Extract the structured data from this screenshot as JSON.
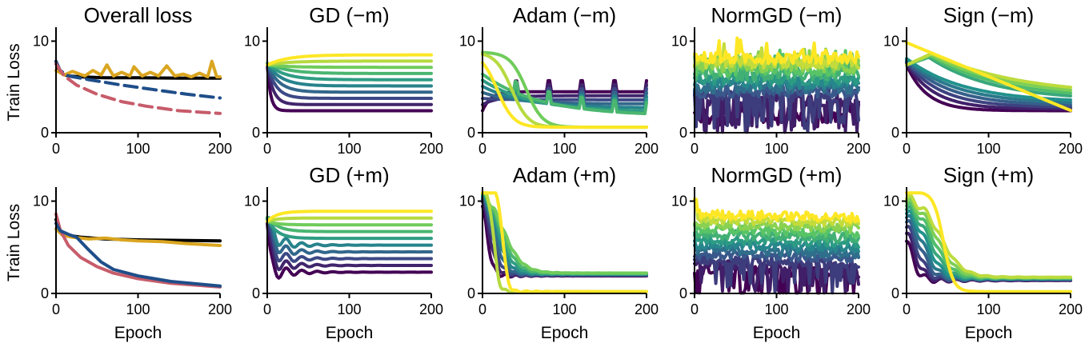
{
  "chart_data": {
    "type": "line",
    "layout": "2x5 grid",
    "x_domain": [
      0,
      200
    ],
    "y_domain": [
      0,
      11
    ],
    "xticks": [
      0,
      100,
      200
    ],
    "yticks": [
      0,
      10
    ],
    "xtick_labels": [
      "0",
      "100",
      "200"
    ],
    "ytick_labels": [
      "0",
      "10"
    ],
    "xlabel": "Epoch",
    "ylabel": "Train Loss",
    "overall_colors": {
      "black": "#000000",
      "gold": "#DAA520",
      "blue": "#1F4E89",
      "pink": "#C75C6A"
    },
    "colormap_stops": [
      "#440154",
      "#3b528b",
      "#21918c",
      "#5ec962",
      "#fde725"
    ],
    "panels": [
      {
        "title": "Overall loss",
        "kind": "overall",
        "series": [
          {
            "name": "black",
            "color": "#000000",
            "dash": false,
            "points": [
              [
                0,
                7.8
              ],
              [
                3,
                6.9
              ],
              [
                8,
                6.4
              ],
              [
                15,
                6.2
              ],
              [
                30,
                6.1
              ],
              [
                60,
                6.0
              ],
              [
                100,
                6.0
              ],
              [
                150,
                5.95
              ],
              [
                200,
                5.95
              ]
            ]
          },
          {
            "name": "gold",
            "color": "#DAA520",
            "dash": false,
            "points": [
              [
                0,
                6.8
              ],
              [
                10,
                6.3
              ],
              [
                20,
                6.7
              ],
              [
                35,
                6.2
              ],
              [
                45,
                6.8
              ],
              [
                55,
                6.3
              ],
              [
                62,
                7.4
              ],
              [
                70,
                6.2
              ],
              [
                80,
                6.6
              ],
              [
                90,
                6.2
              ],
              [
                95,
                7.2
              ],
              [
                105,
                6.2
              ],
              [
                115,
                6.6
              ],
              [
                125,
                6.2
              ],
              [
                135,
                7.3
              ],
              [
                145,
                6.2
              ],
              [
                155,
                6.4
              ],
              [
                165,
                6.1
              ],
              [
                175,
                6.5
              ],
              [
                185,
                6.1
              ],
              [
                190,
                7.8
              ],
              [
                196,
                6.1
              ],
              [
                200,
                6.1
              ]
            ]
          },
          {
            "name": "blue",
            "color": "#1F4E89",
            "dash": true,
            "points": [
              [
                0,
                7.8
              ],
              [
                5,
                6.8
              ],
              [
                15,
                6.2
              ],
              [
                40,
                5.8
              ],
              [
                80,
                5.2
              ],
              [
                120,
                4.7
              ],
              [
                160,
                4.2
              ],
              [
                200,
                3.8
              ]
            ]
          },
          {
            "name": "pink",
            "color": "#C75C6A",
            "dash": true,
            "points": [
              [
                0,
                7.5
              ],
              [
                10,
                6.2
              ],
              [
                25,
                5.2
              ],
              [
                50,
                4.2
              ],
              [
                80,
                3.4
              ],
              [
                110,
                2.9
              ],
              [
                150,
                2.4
              ],
              [
                200,
                2.1
              ]
            ]
          }
        ]
      },
      {
        "title": "GD (−m)",
        "kind": "family",
        "type": "gd_nm",
        "count": 10
      },
      {
        "title": "Adam (−m)",
        "kind": "family",
        "type": "adam_nm",
        "count": 10
      },
      {
        "title": "NormGD (−m)",
        "kind": "family",
        "type": "norm_nm",
        "count": 12
      },
      {
        "title": "Sign (−m)",
        "kind": "family",
        "type": "sign_nm",
        "count": 11
      },
      {
        "title": "",
        "kind": "overall",
        "series": [
          {
            "name": "black",
            "color": "#000000",
            "dash": false,
            "points": [
              [
                0,
                8.0
              ],
              [
                5,
                6.8
              ],
              [
                15,
                6.3
              ],
              [
                30,
                6.1
              ],
              [
                60,
                5.9
              ],
              [
                100,
                5.8
              ],
              [
                150,
                5.75
              ],
              [
                200,
                5.7
              ]
            ]
          },
          {
            "name": "gold",
            "color": "#DAA520",
            "dash": false,
            "points": [
              [
                0,
                7.0
              ],
              [
                8,
                6.3
              ],
              [
                20,
                6.1
              ],
              [
                40,
                5.9
              ],
              [
                60,
                6.0
              ],
              [
                80,
                5.8
              ],
              [
                100,
                5.7
              ],
              [
                130,
                5.6
              ],
              [
                160,
                5.4
              ],
              [
                200,
                5.2
              ]
            ]
          },
          {
            "name": "pink",
            "color": "#C75C6A",
            "dash": false,
            "points": [
              [
                0,
                8.6
              ],
              [
                5,
                6.9
              ],
              [
                15,
                5.2
              ],
              [
                30,
                3.9
              ],
              [
                50,
                2.9
              ],
              [
                70,
                2.2
              ],
              [
                100,
                1.6
              ],
              [
                140,
                1.1
              ],
              [
                200,
                0.7
              ]
            ]
          },
          {
            "name": "blue",
            "color": "#1F4E89",
            "dash": false,
            "points": [
              [
                0,
                7.6
              ],
              [
                5,
                6.8
              ],
              [
                15,
                6.4
              ],
              [
                25,
                6.1
              ],
              [
                40,
                4.7
              ],
              [
                55,
                3.4
              ],
              [
                70,
                2.6
              ],
              [
                100,
                1.9
              ],
              [
                140,
                1.3
              ],
              [
                200,
                0.8
              ]
            ]
          }
        ]
      },
      {
        "title": "GD (+m)",
        "kind": "family",
        "type": "gd_pm",
        "count": 10
      },
      {
        "title": "Adam (+m)",
        "kind": "family",
        "type": "adam_pm",
        "count": 10
      },
      {
        "title": "NormGD (+m)",
        "kind": "family",
        "type": "norm_pm",
        "count": 12
      },
      {
        "title": "Sign (+m)",
        "kind": "family",
        "type": "sign_pm",
        "count": 11
      }
    ]
  }
}
